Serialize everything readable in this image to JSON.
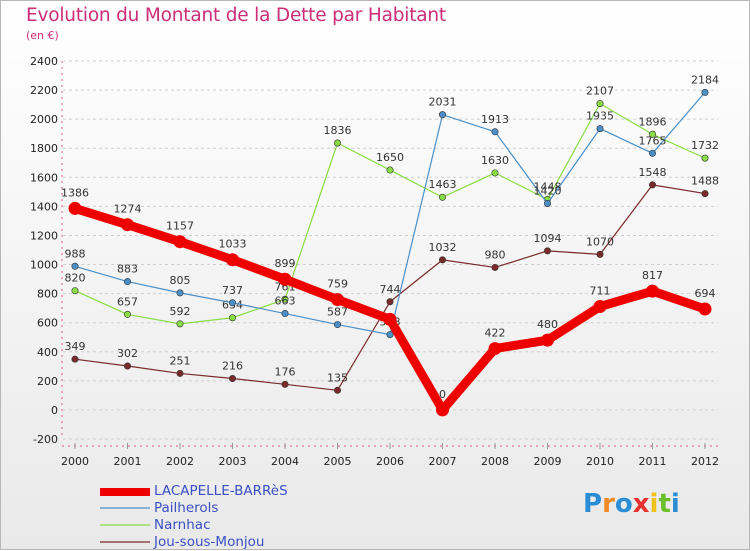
{
  "header": {
    "title": "Evolution du Montant de la Dette par Habitant",
    "unit": "(en €)"
  },
  "chart_data": {
    "type": "line",
    "x": [
      "2000",
      "2001",
      "2002",
      "2003",
      "2004",
      "2005",
      "2006",
      "2007",
      "2008",
      "2009",
      "2010",
      "2011",
      "2012"
    ],
    "ylim": [
      -200,
      2400
    ],
    "yticks": [
      "-200",
      "0",
      "200",
      "400",
      "600",
      "800",
      "1000",
      "1200",
      "1400",
      "1600",
      "1800",
      "2000",
      "2200",
      "2400"
    ],
    "grid": "horizontal dashed",
    "legend_position": "bottom-left",
    "series": [
      {
        "name": "LACAPELLE-BARRèS",
        "color": "#ee0000",
        "style": "thick",
        "values": [
          1386,
          1274,
          1157,
          1033,
          899,
          759,
          623,
          0,
          422,
          480,
          711,
          817,
          694
        ],
        "labels": [
          "1386",
          "1274",
          "1157",
          "1033",
          "899",
          "759",
          "",
          "0",
          "422",
          "480",
          "711",
          "817",
          "694"
        ]
      },
      {
        "name": "Pailherols",
        "color": "#4a8fc8",
        "style": "thin",
        "values": [
          988,
          883,
          805,
          737,
          663,
          587,
          518,
          2031,
          1913,
          1420,
          1935,
          1765,
          2184
        ],
        "labels": [
          "988",
          "883",
          "805",
          "737",
          "663",
          "587",
          "518",
          "2031",
          "1913",
          "1420",
          "1935",
          "1765",
          "2184"
        ]
      },
      {
        "name": "Narnhac",
        "color": "#88dd44",
        "style": "thin",
        "values": [
          820,
          657,
          592,
          634,
          761,
          1836,
          1650,
          1463,
          1630,
          1448,
          2107,
          1896,
          1732
        ],
        "labels": [
          "820",
          "657",
          "592",
          "634",
          "761",
          "1836",
          "1650",
          "1463",
          "1630",
          "1448",
          "2107",
          "1896",
          "1732"
        ]
      },
      {
        "name": "Jou-sous-Monjou",
        "color": "#7a2a2a",
        "style": "thin",
        "values": [
          349,
          302,
          251,
          216,
          176,
          135,
          744,
          1032,
          980,
          1094,
          1070,
          1548,
          1488
        ],
        "labels": [
          "349",
          "302",
          "251",
          "216",
          "176",
          "135",
          "744",
          "1032",
          "980",
          "1094",
          "1070",
          "1548",
          "1488"
        ]
      }
    ]
  },
  "logo": {
    "letters": [
      "P",
      "r",
      "o",
      "x",
      "i",
      "t",
      "i"
    ],
    "colors": [
      "#2b8ed4",
      "#f08a24",
      "#2b8ed4",
      "#e8312f",
      "#f2c01a",
      "#6bbf2a",
      "#2b8ed4"
    ]
  }
}
